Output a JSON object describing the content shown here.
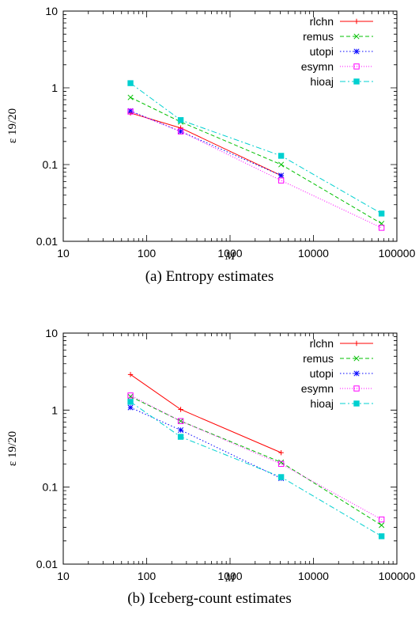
{
  "chart_data": [
    {
      "type": "line",
      "caption": "(a)  Entropy estimates",
      "xlabel": "M",
      "ylabel": "ε 19/20",
      "xscale": "log",
      "yscale": "log",
      "xlim": [
        10,
        100000
      ],
      "ylim": [
        0.01,
        10
      ],
      "xticks": [
        "10",
        "100",
        "1000",
        "10000",
        "100000"
      ],
      "yticks": [
        "0.01",
        "0.1",
        "1",
        "10"
      ],
      "legend_position": "top-right",
      "x": [
        64,
        256,
        4096,
        65536
      ],
      "series": [
        {
          "name": "rlchn",
          "color": "#ff0000",
          "marker": "plus",
          "dash": "",
          "values": [
            0.47,
            0.3,
            0.072,
            null
          ]
        },
        {
          "name": "remus",
          "color": "#00c000",
          "marker": "x",
          "dash": "5,3",
          "values": [
            0.75,
            0.36,
            0.1,
            0.017
          ]
        },
        {
          "name": "utopi",
          "color": "#0000ff",
          "marker": "star",
          "dash": "1.5,2.5",
          "values": [
            0.5,
            0.27,
            0.072,
            null
          ]
        },
        {
          "name": "esymn",
          "color": "#ff00ff",
          "marker": "box",
          "dash": "1,2",
          "values": [
            0.49,
            0.27,
            0.062,
            0.015
          ]
        },
        {
          "name": "hioaj",
          "color": "#00d0d0",
          "marker": "filledbox",
          "dash": "7,3,2,3",
          "values": [
            1.15,
            0.38,
            0.13,
            0.023
          ]
        }
      ]
    },
    {
      "type": "line",
      "caption": "(b)  Iceberg-count estimates",
      "xlabel": "M",
      "ylabel": "ε 19/20",
      "xscale": "log",
      "yscale": "log",
      "xlim": [
        10,
        100000
      ],
      "ylim": [
        0.01,
        10
      ],
      "xticks": [
        "10",
        "100",
        "1000",
        "10000",
        "100000"
      ],
      "yticks": [
        "0.01",
        "0.1",
        "1",
        "10"
      ],
      "legend_position": "top-right",
      "x": [
        64,
        256,
        4096,
        65536
      ],
      "series": [
        {
          "name": "rlchn",
          "color": "#ff0000",
          "marker": "plus",
          "dash": "",
          "values": [
            2.9,
            1.02,
            0.28,
            null
          ]
        },
        {
          "name": "remus",
          "color": "#00c000",
          "marker": "x",
          "dash": "5,3",
          "values": [
            1.5,
            0.72,
            0.21,
            0.032
          ]
        },
        {
          "name": "utopi",
          "color": "#0000ff",
          "marker": "star",
          "dash": "1.5,2.5",
          "values": [
            1.08,
            0.55,
            0.13,
            null
          ]
        },
        {
          "name": "esymn",
          "color": "#ff00ff",
          "marker": "box",
          "dash": "1,2",
          "values": [
            1.55,
            0.72,
            0.2,
            0.038
          ]
        },
        {
          "name": "hioaj",
          "color": "#00d0d0",
          "marker": "filledbox",
          "dash": "7,3,2,3",
          "values": [
            1.28,
            0.45,
            0.135,
            0.023
          ]
        }
      ]
    }
  ]
}
